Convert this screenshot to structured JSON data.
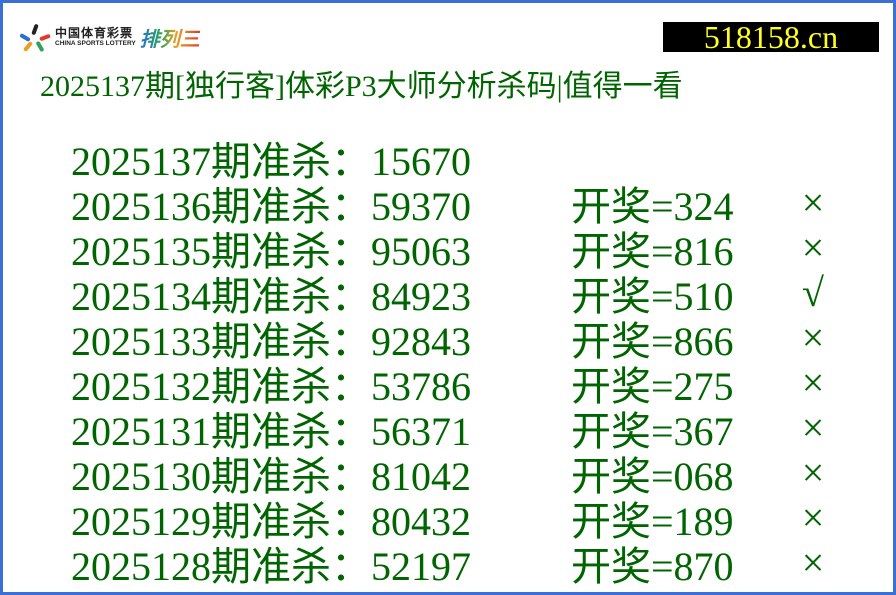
{
  "header": {
    "logo": {
      "cn": "中国体育彩票",
      "en": "CHINA SPORTS LOTTERY",
      "game": "排列三"
    },
    "site": "518158.cn",
    "title": "2025137期[独行客]体彩P3大师分析杀码|值得一看"
  },
  "colors": {
    "text": "#006400",
    "border": "#3a6fd8",
    "site_bg": "#000000",
    "site_text": "#ffff22"
  },
  "rows": [
    {
      "label": "2025137期准杀：15670",
      "draw": "",
      "mark": ""
    },
    {
      "label": "2025136期准杀：59370",
      "draw": "开奖=324",
      "mark": "×"
    },
    {
      "label": "2025135期准杀：95063",
      "draw": "开奖=816",
      "mark": "×"
    },
    {
      "label": "2025134期准杀：84923",
      "draw": "开奖=510",
      "mark": "√"
    },
    {
      "label": "2025133期准杀：92843",
      "draw": "开奖=866",
      "mark": "×"
    },
    {
      "label": "2025132期准杀：53786",
      "draw": "开奖=275",
      "mark": "×"
    },
    {
      "label": "2025131期准杀：56371",
      "draw": "开奖=367",
      "mark": "×"
    },
    {
      "label": "2025130期准杀：81042",
      "draw": "开奖=068",
      "mark": "×"
    },
    {
      "label": "2025129期准杀：80432",
      "draw": "开奖=189",
      "mark": "×"
    },
    {
      "label": "2025128期准杀：52197",
      "draw": "开奖=870",
      "mark": "×"
    }
  ]
}
